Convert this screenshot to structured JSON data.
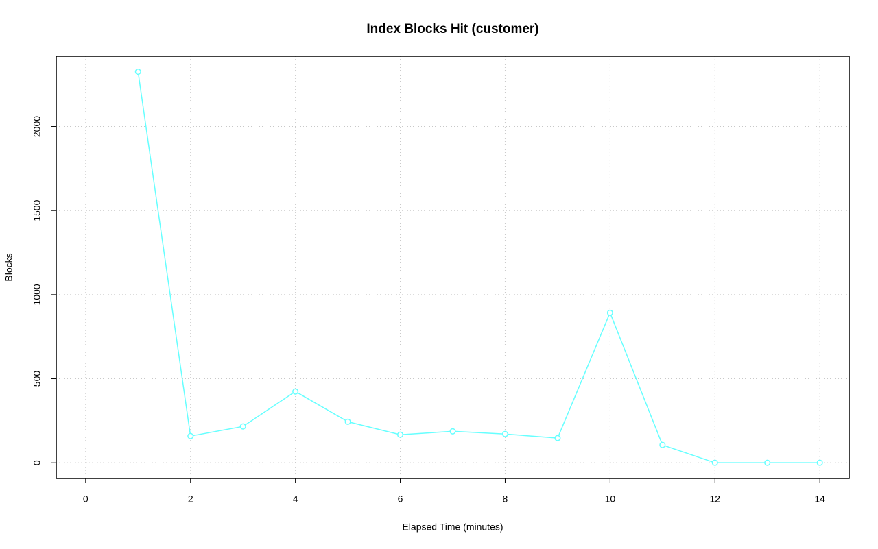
{
  "chart_data": {
    "type": "line",
    "title": "Index Blocks Hit (customer)",
    "x_label": "Elapsed Time (minutes)",
    "y_label": "Blocks",
    "x": [
      1,
      2,
      3,
      4,
      5,
      6,
      7,
      8,
      9,
      10,
      11,
      12,
      13,
      14
    ],
    "series": [
      {
        "name": "customer",
        "color": "#66ffff",
        "values": [
          2326,
          159,
          216,
          424,
          244,
          167,
          187,
          171,
          147,
          892,
          106,
          0,
          0,
          0
        ]
      }
    ],
    "xlim": [
      -0.56,
      14.56
    ],
    "xticks": [
      0,
      2,
      4,
      6,
      8,
      10,
      12,
      14
    ],
    "ylim": [
      -93,
      2418
    ],
    "yticks": [
      0,
      500,
      1000,
      1500,
      2000
    ],
    "grid": true
  }
}
